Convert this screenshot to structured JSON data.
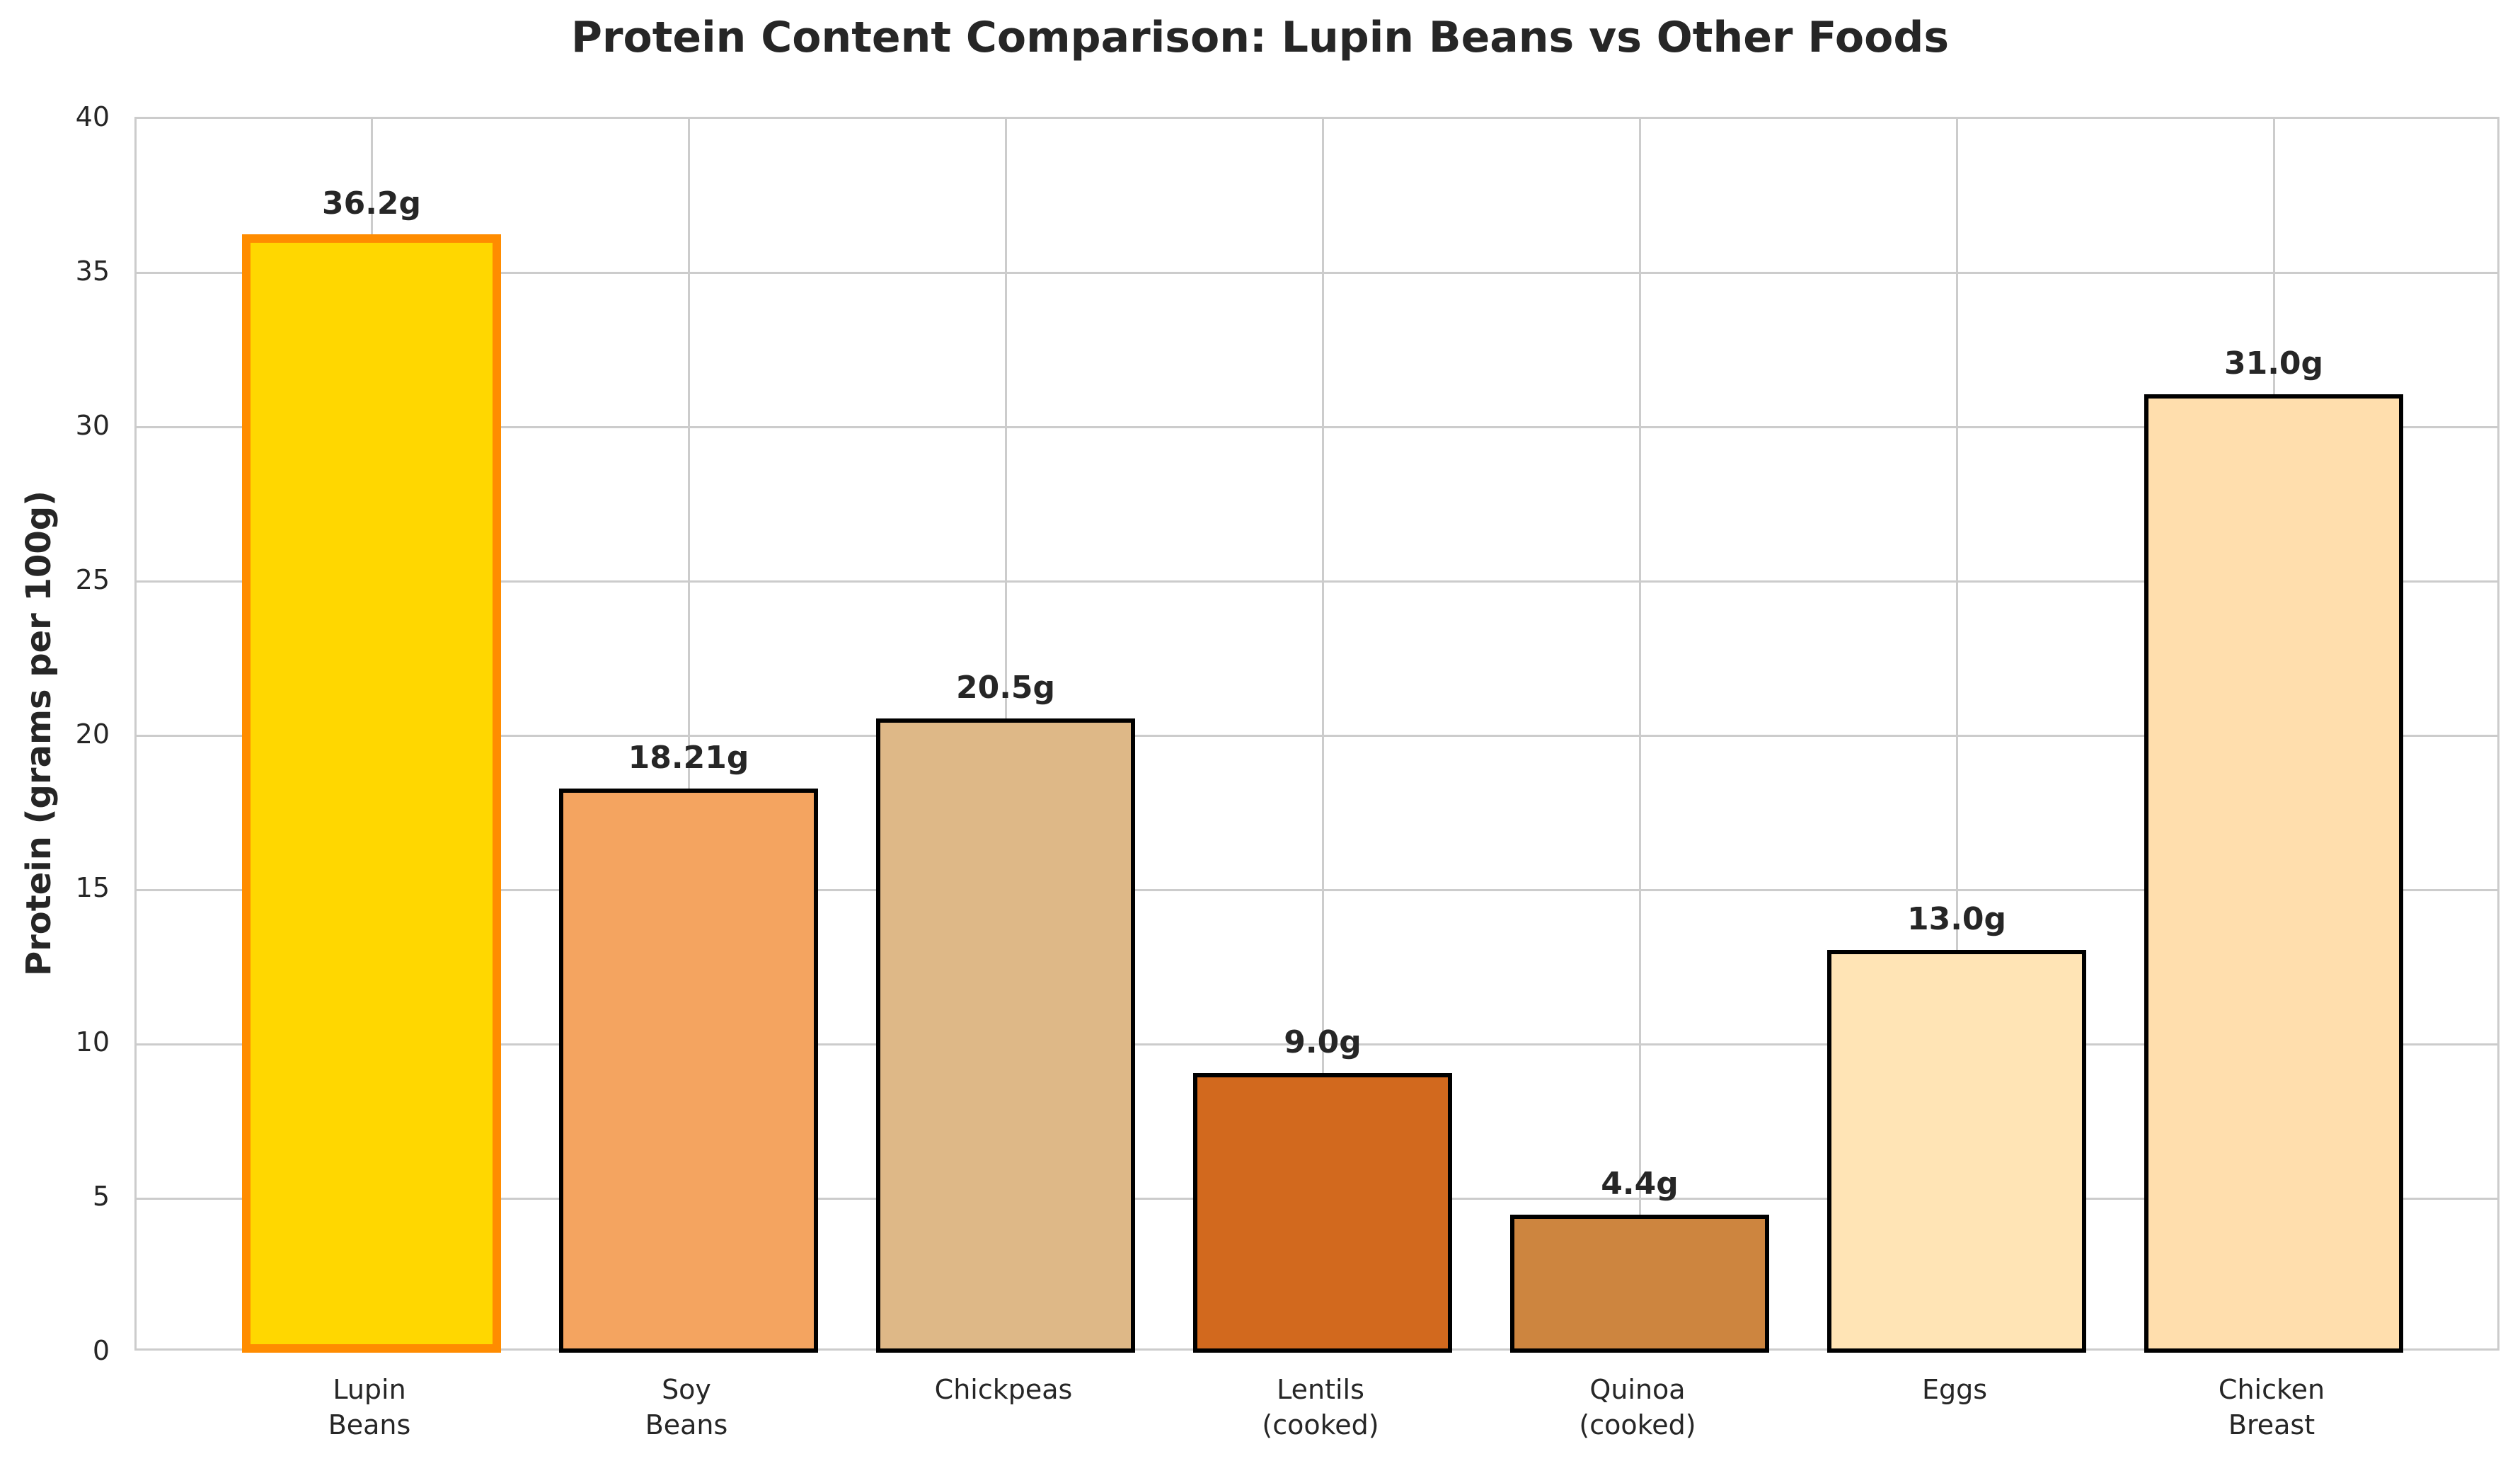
{
  "chart_data": {
    "type": "bar",
    "title": "Protein Content Comparison: Lupin Beans vs Other Foods",
    "xlabel": "",
    "ylabel": "Protein (grams per 100g)",
    "ylim": [
      0,
      40
    ],
    "yticks": [
      "0",
      "5",
      "10",
      "15",
      "20",
      "25",
      "30",
      "35",
      "40"
    ],
    "grid": true,
    "legend": null,
    "categories": [
      "Lupin\nBeans",
      "Soy\nBeans",
      "Chickpeas",
      "Lentils\n(cooked)",
      "Quinoa\n(cooked)",
      "Eggs",
      "Chicken\nBreast"
    ],
    "values": [
      36.2,
      18.21,
      20.5,
      9.0,
      4.4,
      13.0,
      31.0
    ],
    "value_labels": [
      "36.2g",
      "18.21g",
      "20.5g",
      "9.0g",
      "4.4g",
      "13.0g",
      "31.0g"
    ],
    "colors": [
      "#FFD700",
      "#F4A460",
      "#DEB887",
      "#D2691E",
      "#CD853F",
      "#FFE4B5",
      "#FFDEAD"
    ],
    "edge_colors": [
      "#FF8C00",
      "#000000",
      "#000000",
      "#000000",
      "#000000",
      "#000000",
      "#000000"
    ],
    "highlighted_index": 0
  }
}
